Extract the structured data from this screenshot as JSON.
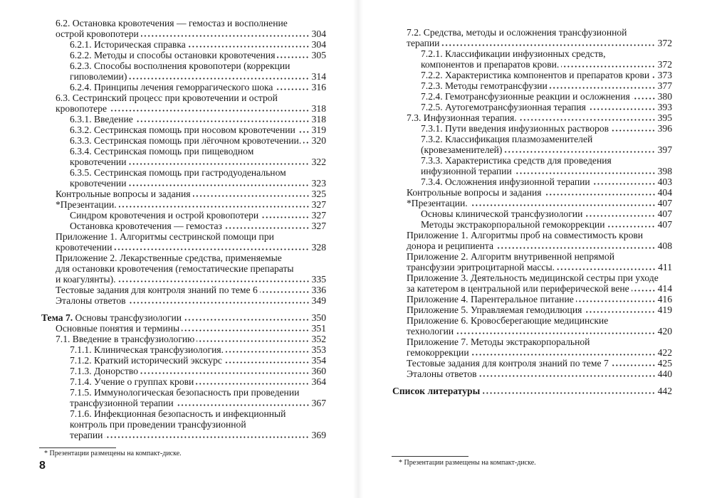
{
  "left_page": {
    "entries": [
      {
        "level": 1,
        "lines": [
          "6.2. Остановка кровотечения — гемостаз и восполнение",
          "острой кровопотери"
        ],
        "page": "304"
      },
      {
        "level": 2,
        "lines": [
          "6.2.1. Историческая справка"
        ],
        "page": "304"
      },
      {
        "level": 2,
        "lines": [
          "6.2.2. Методы и способы остановки кровотечения"
        ],
        "page": "305"
      },
      {
        "level": 2,
        "lines": [
          "6.2.3. Способы восполнения кровопотери (коррекции",
          "гиповолемии)"
        ],
        "page": "314"
      },
      {
        "level": 2,
        "lines": [
          "6.2.4. Принципы лечения геморрагического шока"
        ],
        "page": "316"
      },
      {
        "level": 1,
        "lines": [
          "6.3. Сестринский процесс при кровотечении и острой",
          "кровопотере"
        ],
        "page": "318"
      },
      {
        "level": 2,
        "lines": [
          "6.3.1. Введение"
        ],
        "page": "318"
      },
      {
        "level": 2,
        "lines": [
          "6.3.2. Сестринская помощь при носовом кровотечении"
        ],
        "page": "319"
      },
      {
        "level": 2,
        "lines": [
          "6.3.3. Сестринская помощь при лёгочном кровотечении."
        ],
        "page": "320"
      },
      {
        "level": 2,
        "lines": [
          "6.3.4. Сестринская помощь при пищеводном",
          "кровотечении"
        ],
        "page": "322"
      },
      {
        "level": 2,
        "lines": [
          "6.3.5. Сестринская помощь при гастродуоденальном",
          "кровотечении"
        ],
        "page": "323"
      },
      {
        "level": 1,
        "lines": [
          "Контрольные вопросы и задания"
        ],
        "page": "325"
      },
      {
        "level": 1,
        "lines": [
          "*Презентации."
        ],
        "page": "327"
      },
      {
        "level": 2,
        "lines": [
          "Синдром кровотечения и острой кровопотери"
        ],
        "page": "327"
      },
      {
        "level": 2,
        "lines": [
          "Остановка кровотечения — гемостаз"
        ],
        "page": "327"
      },
      {
        "level": 1,
        "lines": [
          "Приложение 1. Алгоритмы сестринской помощи при",
          "кровотечении"
        ],
        "page": "328"
      },
      {
        "level": 1,
        "lines": [
          "Приложение 2. Лекарственные средства, применяемые",
          "для остановки кровотечения (гемостатические препараты",
          "и коагулянты)."
        ],
        "page": "335"
      },
      {
        "level": 1,
        "lines": [
          "Тестовые задания для контроля знаний по теме 6"
        ],
        "page": "336"
      },
      {
        "level": 1,
        "lines": [
          "Эталоны ответов"
        ],
        "page": "349"
      },
      {
        "level": 0,
        "gap": true,
        "bold_prefix": "Тема 7.",
        "lines": [
          " Основы трансфузиологии"
        ],
        "page": "350"
      },
      {
        "level": 1,
        "lines": [
          "Основные понятия и термины"
        ],
        "page": "351"
      },
      {
        "level": 1,
        "lines": [
          "7.1. Введение в трансфузиологию"
        ],
        "page": "352"
      },
      {
        "level": 2,
        "lines": [
          "7.1.1. Клиническая трансфузиология."
        ],
        "page": "353"
      },
      {
        "level": 2,
        "lines": [
          "7.1.2. Краткий исторический экскурс"
        ],
        "page": "354"
      },
      {
        "level": 2,
        "lines": [
          "7.1.3. Донорство"
        ],
        "page": "360"
      },
      {
        "level": 2,
        "lines": [
          "7.1.4. Учение о группах крови"
        ],
        "page": "364"
      },
      {
        "level": 2,
        "lines": [
          "7.1.5. Иммунологическая безопасность при проведении",
          "трансфузионной терапии"
        ],
        "page": "367"
      },
      {
        "level": 2,
        "lines": [
          "7.1.6. Инфекционная безопасность и инфекционный",
          "контроль при проведении трансфузионной",
          "терапии"
        ],
        "page": "369"
      }
    ],
    "footnote": "* Презентации размещены на компакт-диске.",
    "page_number": "8"
  },
  "right_page": {
    "entries": [
      {
        "level": 1,
        "lines": [
          "7.2. Средства, методы и осложнения трансфузионной",
          "терапии"
        ],
        "page": "372"
      },
      {
        "level": 2,
        "lines": [
          "7.2.1. Классификации инфузионных средств,",
          "компонентов и препаратов крови."
        ],
        "page": "372"
      },
      {
        "level": 2,
        "lines": [
          "7.2.2. Характеристика компонентов и препаратов крови"
        ],
        "page": "373"
      },
      {
        "level": 2,
        "lines": [
          "7.2.3. Методы гемотрансфузии"
        ],
        "page": "377"
      },
      {
        "level": 2,
        "lines": [
          "7.2.4. Гемотрансфузионные реакции и осложнения"
        ],
        "page": "380"
      },
      {
        "level": 2,
        "lines": [
          "7.2.5. Аутогемотрансфузионная терапия"
        ],
        "page": "393"
      },
      {
        "level": 1,
        "lines": [
          "7.3. Инфузионная терапия."
        ],
        "page": "395"
      },
      {
        "level": 2,
        "lines": [
          "7.3.1. Пути введения инфузионных растворов"
        ],
        "page": "396"
      },
      {
        "level": 2,
        "lines": [
          "7.3.2. Классификация плазмозаменителей",
          "(кровезаменителей)"
        ],
        "page": "397"
      },
      {
        "level": 2,
        "lines": [
          "7.3.3. Характеристика средств для проведения",
          "инфузионной терапии"
        ],
        "page": "398"
      },
      {
        "level": 2,
        "lines": [
          "7.3.4. Осложнения инфузионной терапии"
        ],
        "page": "403"
      },
      {
        "level": 1,
        "lines": [
          "Контрольные вопросы и задания"
        ],
        "page": "404"
      },
      {
        "level": 1,
        "lines": [
          "*Презентации."
        ],
        "page": "407"
      },
      {
        "level": 2,
        "lines": [
          "Основы клинической трансфузиологии"
        ],
        "page": "407"
      },
      {
        "level": 2,
        "lines": [
          "Методы экстракорпоральной гемокоррекции"
        ],
        "page": "407"
      },
      {
        "level": 1,
        "lines": [
          "Приложение 1. Алгоритмы проб на совместимость крови",
          "донора и реципиента"
        ],
        "page": "408"
      },
      {
        "level": 1,
        "lines": [
          "Приложение 2. Алгоритм внутривенной непрямой",
          "трансфузии эритроцитарной массы."
        ],
        "page": "411"
      },
      {
        "level": 1,
        "lines": [
          "Приложение 3. Деятельность медицинской сестры при уходе",
          "за катетером в центральной или периферической вене"
        ],
        "page": "414"
      },
      {
        "level": 1,
        "lines": [
          "Приложение 4. Парентеральное питание"
        ],
        "page": "416"
      },
      {
        "level": 1,
        "lines": [
          "Приложение 5. Управляемая гемодилюция"
        ],
        "page": "419"
      },
      {
        "level": 1,
        "lines": [
          "Приложение 6. Кровосберегающие медицинские",
          "технологии"
        ],
        "page": "420"
      },
      {
        "level": 1,
        "lines": [
          "Приложение 7. Методы экстракорпоральной",
          "гемокоррекции"
        ],
        "page": "422"
      },
      {
        "level": 1,
        "lines": [
          "Тестовые задания для контроля знаний по теме 7"
        ],
        "page": "425"
      },
      {
        "level": 1,
        "lines": [
          "Эталоны ответов"
        ],
        "page": "440"
      },
      {
        "level": 0,
        "gap": true,
        "bold_prefix": "Список литературы",
        "lines": [
          ""
        ],
        "page": "442"
      }
    ],
    "footnote": "* Презентации размещены на компакт-диске."
  }
}
